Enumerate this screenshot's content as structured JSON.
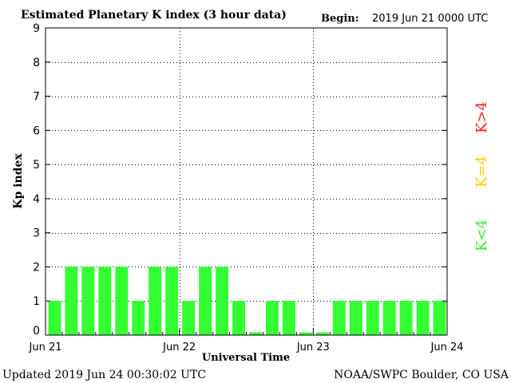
{
  "chart_data": {
    "type": "bar",
    "title": "Estimated Planetary K index (3 hour data)",
    "begin_label": "Begin:",
    "begin_value": "2019 Jun 21 0000 UTC",
    "xlabel": "Universal Time",
    "ylabel": "Kp index",
    "ylim": [
      0,
      9
    ],
    "yticks": [
      "0",
      "1",
      "2",
      "3",
      "4",
      "5",
      "6",
      "7",
      "8",
      "9"
    ],
    "xtick_labels": [
      "Jun 21",
      "Jun 22",
      "Jun 23",
      "Jun 24"
    ],
    "grid": true,
    "bar_color": "#33ff33",
    "values": [
      1,
      2,
      2,
      2,
      2,
      1,
      2,
      2,
      1,
      2,
      2,
      1,
      0.08,
      1,
      1,
      0.08,
      0.08,
      1,
      1,
      1,
      1,
      1,
      1,
      1
    ],
    "legend": [
      {
        "label": "K<4",
        "color": "#33ee33"
      },
      {
        "label": "K=4",
        "color": "#ffcc00"
      },
      {
        "label": "K>4",
        "color": "#ee2222"
      }
    ]
  },
  "footer": {
    "updated": "Updated 2019 Jun 24 00:30:02 UTC",
    "source": "NOAA/SWPC Boulder, CO USA"
  }
}
